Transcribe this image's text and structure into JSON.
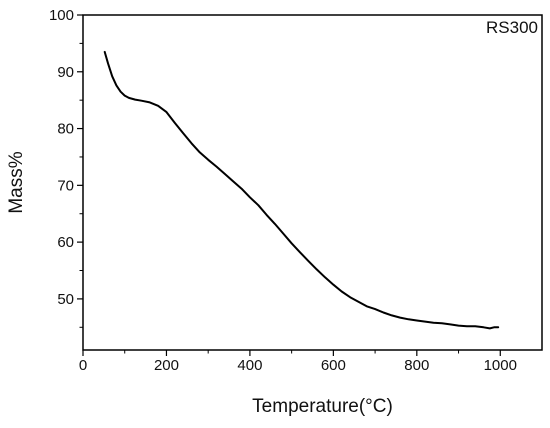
{
  "chart_data": {
    "type": "line",
    "title": "",
    "xlabel": "Temperature(°C)",
    "ylabel": "Mass%",
    "xlim": [
      0,
      1100
    ],
    "ylim": [
      41,
      100
    ],
    "x_ticks": [
      "0",
      "200",
      "400",
      "600",
      "800",
      "1000"
    ],
    "y_ticks": [
      "50",
      "60",
      "70",
      "80",
      "90",
      "100"
    ],
    "grid": false,
    "legend_position": "top-right",
    "series": [
      {
        "name": "RS300",
        "color": "#000000",
        "points": [
          [
            52,
            93.5
          ],
          [
            60,
            91.5
          ],
          [
            70,
            89.2
          ],
          [
            80,
            87.6
          ],
          [
            90,
            86.5
          ],
          [
            100,
            85.8
          ],
          [
            110,
            85.4
          ],
          [
            125,
            85.1
          ],
          [
            140,
            84.9
          ],
          [
            160,
            84.6
          ],
          [
            180,
            84.0
          ],
          [
            200,
            82.9
          ],
          [
            220,
            81.0
          ],
          [
            240,
            79.2
          ],
          [
            260,
            77.4
          ],
          [
            280,
            75.8
          ],
          [
            300,
            74.5
          ],
          [
            320,
            73.3
          ],
          [
            340,
            72.0
          ],
          [
            360,
            70.7
          ],
          [
            380,
            69.4
          ],
          [
            400,
            67.9
          ],
          [
            420,
            66.5
          ],
          [
            440,
            64.8
          ],
          [
            460,
            63.2
          ],
          [
            480,
            61.5
          ],
          [
            500,
            59.8
          ],
          [
            520,
            58.2
          ],
          [
            540,
            56.7
          ],
          [
            560,
            55.2
          ],
          [
            580,
            53.8
          ],
          [
            600,
            52.5
          ],
          [
            620,
            51.3
          ],
          [
            640,
            50.3
          ],
          [
            660,
            49.5
          ],
          [
            680,
            48.7
          ],
          [
            700,
            48.2
          ],
          [
            720,
            47.6
          ],
          [
            740,
            47.1
          ],
          [
            760,
            46.7
          ],
          [
            780,
            46.4
          ],
          [
            800,
            46.2
          ],
          [
            820,
            46.0
          ],
          [
            840,
            45.8
          ],
          [
            860,
            45.7
          ],
          [
            880,
            45.5
          ],
          [
            900,
            45.3
          ],
          [
            920,
            45.2
          ],
          [
            940,
            45.2
          ],
          [
            960,
            45.0
          ],
          [
            975,
            44.8
          ],
          [
            985,
            45.0
          ],
          [
            995,
            45.0
          ]
        ]
      }
    ]
  }
}
